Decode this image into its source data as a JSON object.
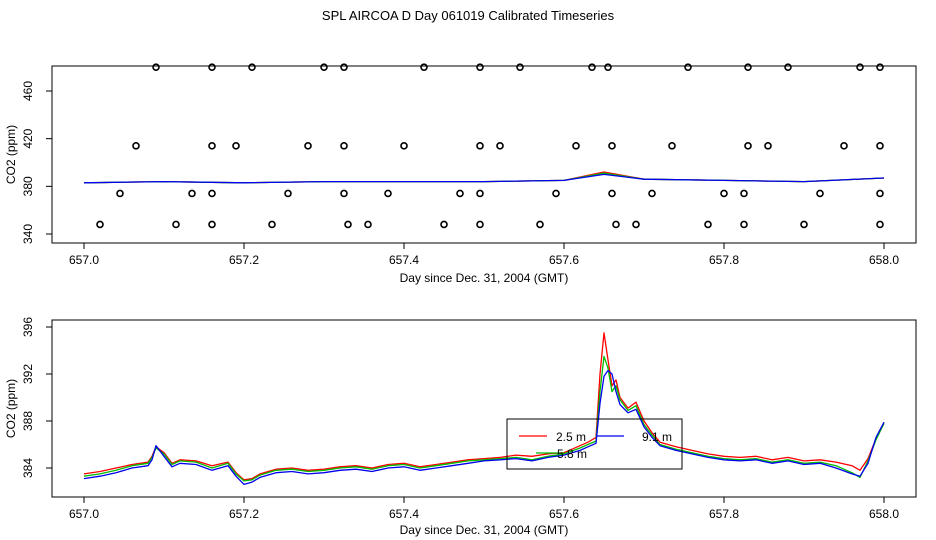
{
  "title": "SPL AIRCOA D  Day 061019  Calibrated Timeseries",
  "chart_data": [
    {
      "type": "scatter",
      "title": "",
      "xlabel": "Day since Dec. 31, 2004 (GMT)",
      "ylabel": "CO2 (ppm)",
      "xlim": [
        657.0,
        658.0
      ],
      "ylim": [
        340,
        480
      ],
      "xticks": [
        "657.0",
        "657.2",
        "657.4",
        "657.6",
        "657.8",
        "658.0"
      ],
      "yticks": [
        "340",
        "380",
        "420",
        "460"
      ],
      "calibration_points": [
        {
          "y": 480,
          "x": [
            657.09,
            657.16,
            657.21,
            657.3,
            657.325,
            657.425,
            657.495,
            657.545,
            657.635,
            657.655,
            657.755,
            657.83,
            657.88,
            657.97,
            657.995
          ]
        },
        {
          "y": 414,
          "x": [
            657.065,
            657.16,
            657.19,
            657.28,
            657.325,
            657.4,
            657.495,
            657.52,
            657.615,
            657.66,
            657.735,
            657.83,
            657.855,
            657.95,
            657.995
          ]
        },
        {
          "y": 374,
          "x": [
            657.045,
            657.135,
            657.16,
            657.255,
            657.325,
            657.38,
            657.47,
            657.495,
            657.59,
            657.66,
            657.71,
            657.8,
            657.825,
            657.92,
            657.995
          ]
        },
        {
          "y": 348,
          "x": [
            657.02,
            657.115,
            657.16,
            657.235,
            657.33,
            657.355,
            657.45,
            657.495,
            657.57,
            657.665,
            657.69,
            657.78,
            657.825,
            657.9,
            657.995
          ]
        }
      ],
      "series": [
        {
          "name": "2.5 m",
          "color": "#ff0000",
          "x": [
            657.0,
            657.1,
            657.2,
            657.3,
            657.4,
            657.5,
            657.6,
            657.65,
            657.7,
            657.8,
            657.9,
            658.0
          ],
          "values": [
            383,
            384,
            383,
            384,
            384,
            384,
            385,
            392,
            386,
            385,
            384,
            387
          ]
        },
        {
          "name": "5.8 m",
          "color": "#00bb00",
          "x": [
            657.0,
            657.1,
            657.2,
            657.3,
            657.4,
            657.5,
            657.6,
            657.65,
            657.7,
            657.8,
            657.9,
            658.0
          ],
          "values": [
            383,
            384,
            383,
            384,
            384,
            384,
            385,
            391,
            386,
            385,
            384,
            387
          ]
        },
        {
          "name": "9.1 m",
          "color": "#0000ee",
          "x": [
            657.0,
            657.1,
            657.2,
            657.3,
            657.4,
            657.5,
            657.6,
            657.65,
            657.7,
            657.8,
            657.9,
            658.0
          ],
          "values": [
            383,
            384,
            383,
            384,
            384,
            384,
            385,
            390,
            386,
            385,
            384,
            387
          ]
        }
      ]
    },
    {
      "type": "line",
      "title": "",
      "xlabel": "Day since Dec. 31, 2004 (GMT)",
      "ylabel": "CO2 (ppm)",
      "xlim": [
        657.0,
        658.0
      ],
      "ylim": [
        382.5,
        396.2
      ],
      "xticks": [
        "657.0",
        "657.2",
        "657.4",
        "657.6",
        "657.8",
        "658.0"
      ],
      "yticks": [
        "384",
        "388",
        "392",
        "396"
      ],
      "legend": {
        "position": "center-right",
        "entries": [
          "2.5 m",
          "5.8 m",
          "9.1 m"
        ]
      },
      "series": [
        {
          "name": "2.5 m",
          "color": "#ff0000",
          "x": [
            657.0,
            657.02,
            657.04,
            657.06,
            657.08,
            657.085,
            657.09,
            657.1,
            657.11,
            657.12,
            657.14,
            657.16,
            657.18,
            657.19,
            657.2,
            657.21,
            657.22,
            657.24,
            657.26,
            657.28,
            657.3,
            657.32,
            657.34,
            657.36,
            657.38,
            657.4,
            657.42,
            657.44,
            657.46,
            657.48,
            657.5,
            657.52,
            657.54,
            657.56,
            657.58,
            657.6,
            657.62,
            657.63,
            657.64,
            657.645,
            657.65,
            657.655,
            657.66,
            657.665,
            657.67,
            657.68,
            657.69,
            657.7,
            657.71,
            657.72,
            657.74,
            657.76,
            657.78,
            657.8,
            657.82,
            657.84,
            657.86,
            657.88,
            657.9,
            657.92,
            657.94,
            657.96,
            657.97,
            657.98,
            657.99,
            658.0
          ],
          "values": [
            383.5,
            383.7,
            384.0,
            384.3,
            384.5,
            385.0,
            385.8,
            385.3,
            384.4,
            384.7,
            384.6,
            384.2,
            384.5,
            383.6,
            383.0,
            383.1,
            383.5,
            383.9,
            384.0,
            383.8,
            383.9,
            384.1,
            384.2,
            384.0,
            384.3,
            384.4,
            384.1,
            384.3,
            384.5,
            384.7,
            384.8,
            384.9,
            385.1,
            385.0,
            385.2,
            385.3,
            385.9,
            386.2,
            386.6,
            392.0,
            395.5,
            393.2,
            391.0,
            391.5,
            390.0,
            389.1,
            389.6,
            388.0,
            387.0,
            386.2,
            385.8,
            385.5,
            385.2,
            385.0,
            384.9,
            385.0,
            384.7,
            384.9,
            384.6,
            384.7,
            384.5,
            384.2,
            383.8,
            384.8,
            386.5,
            387.8
          ]
        },
        {
          "name": "5.8 m",
          "color": "#00bb00",
          "x": [
            657.0,
            657.02,
            657.04,
            657.06,
            657.08,
            657.085,
            657.09,
            657.1,
            657.11,
            657.12,
            657.14,
            657.16,
            657.18,
            657.19,
            657.2,
            657.21,
            657.22,
            657.24,
            657.26,
            657.28,
            657.3,
            657.32,
            657.34,
            657.36,
            657.38,
            657.4,
            657.42,
            657.44,
            657.46,
            657.48,
            657.5,
            657.52,
            657.54,
            657.56,
            657.58,
            657.6,
            657.62,
            657.63,
            657.64,
            657.645,
            657.65,
            657.655,
            657.66,
            657.665,
            657.67,
            657.68,
            657.69,
            657.7,
            657.71,
            657.72,
            657.74,
            657.76,
            657.78,
            657.8,
            657.82,
            657.84,
            657.86,
            657.88,
            657.9,
            657.92,
            657.94,
            657.96,
            657.97,
            657.98,
            657.99,
            658.0
          ],
          "values": [
            383.3,
            383.5,
            383.8,
            384.2,
            384.4,
            384.9,
            385.7,
            385.2,
            384.3,
            384.6,
            384.5,
            384.0,
            384.4,
            383.5,
            382.9,
            383.0,
            383.4,
            383.8,
            383.9,
            383.7,
            383.8,
            384.0,
            384.1,
            383.9,
            384.2,
            384.3,
            384.0,
            384.2,
            384.4,
            384.6,
            384.7,
            384.8,
            384.9,
            384.7,
            385.0,
            385.2,
            385.7,
            386.0,
            386.3,
            390.5,
            393.5,
            392.5,
            390.5,
            391.0,
            389.8,
            388.9,
            389.3,
            387.7,
            386.8,
            386.0,
            385.6,
            385.3,
            385.0,
            384.8,
            384.7,
            384.8,
            384.5,
            384.7,
            384.4,
            384.5,
            384.2,
            383.6,
            383.2,
            384.6,
            386.4,
            387.8
          ]
        },
        {
          "name": "9.1 m",
          "color": "#0000ee",
          "x": [
            657.0,
            657.02,
            657.04,
            657.06,
            657.08,
            657.085,
            657.09,
            657.1,
            657.11,
            657.12,
            657.14,
            657.16,
            657.18,
            657.19,
            657.2,
            657.21,
            657.22,
            657.24,
            657.26,
            657.28,
            657.3,
            657.32,
            657.34,
            657.36,
            657.38,
            657.4,
            657.42,
            657.44,
            657.46,
            657.48,
            657.5,
            657.52,
            657.54,
            657.56,
            657.58,
            657.6,
            657.62,
            657.63,
            657.64,
            657.645,
            657.65,
            657.655,
            657.66,
            657.665,
            657.67,
            657.68,
            657.69,
            657.7,
            657.71,
            657.72,
            657.74,
            657.76,
            657.78,
            657.8,
            657.82,
            657.84,
            657.86,
            657.88,
            657.9,
            657.92,
            657.94,
            657.96,
            657.97,
            657.98,
            657.99,
            658.0
          ],
          "values": [
            383.1,
            383.3,
            383.6,
            384.0,
            384.2,
            384.7,
            385.9,
            385.0,
            384.1,
            384.4,
            384.3,
            383.8,
            384.2,
            383.3,
            382.6,
            382.8,
            383.2,
            383.6,
            383.7,
            383.5,
            383.6,
            383.8,
            383.9,
            383.7,
            384.0,
            384.1,
            383.8,
            384.0,
            384.2,
            384.4,
            384.6,
            384.7,
            384.8,
            384.6,
            384.9,
            385.1,
            385.5,
            385.8,
            386.1,
            389.5,
            391.8,
            392.3,
            392.0,
            390.5,
            389.4,
            388.7,
            389.0,
            387.5,
            386.6,
            385.9,
            385.5,
            385.2,
            384.9,
            384.7,
            384.6,
            384.7,
            384.4,
            384.6,
            384.3,
            384.4,
            384.0,
            383.5,
            383.3,
            384.4,
            386.6,
            387.9
          ]
        }
      ]
    }
  ]
}
